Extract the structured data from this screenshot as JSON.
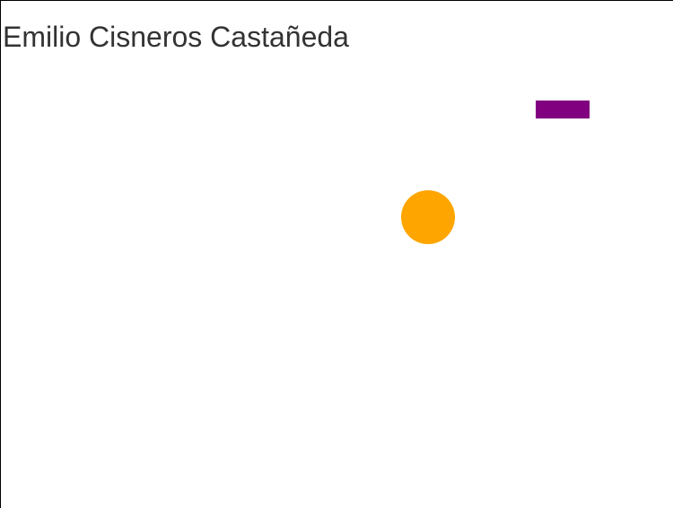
{
  "title": "Emilio Cisneros Castañeda",
  "shapes": {
    "rectangle": {
      "color": "#800080"
    },
    "circle": {
      "color": "#ffa500"
    }
  }
}
